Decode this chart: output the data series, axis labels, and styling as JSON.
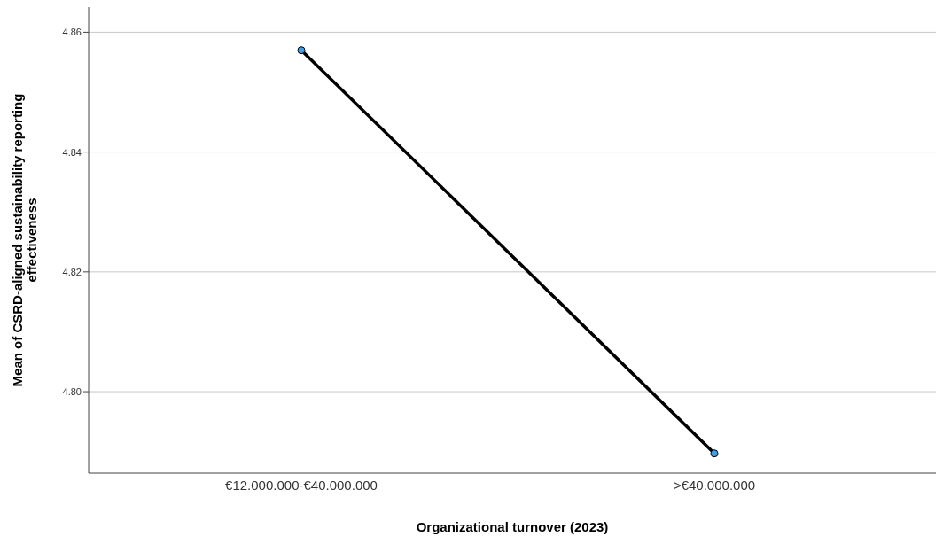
{
  "chart_data": {
    "type": "line",
    "xlabel": "Organizational turnover (2023)",
    "ylabel": "Mean of CSRD-aligned sustainability reporting effectiveness",
    "categories": [
      "€12.000.000-€40.000.000",
      ">€40.000.000"
    ],
    "series": [
      {
        "color": "#000000",
        "values": [
          4.857,
          4.7897
        ]
      }
    ],
    "ylim": [
      4.7864,
      4.8642
    ],
    "yticks": [
      {
        "value": 4.8,
        "label": "4.80"
      },
      {
        "value": 4.82,
        "label": "4.82"
      },
      {
        "value": 4.84,
        "label": "4.84"
      },
      {
        "value": 4.86,
        "label": "4.86"
      }
    ],
    "grid": "y",
    "marker": "circle",
    "line_style": "solid"
  }
}
